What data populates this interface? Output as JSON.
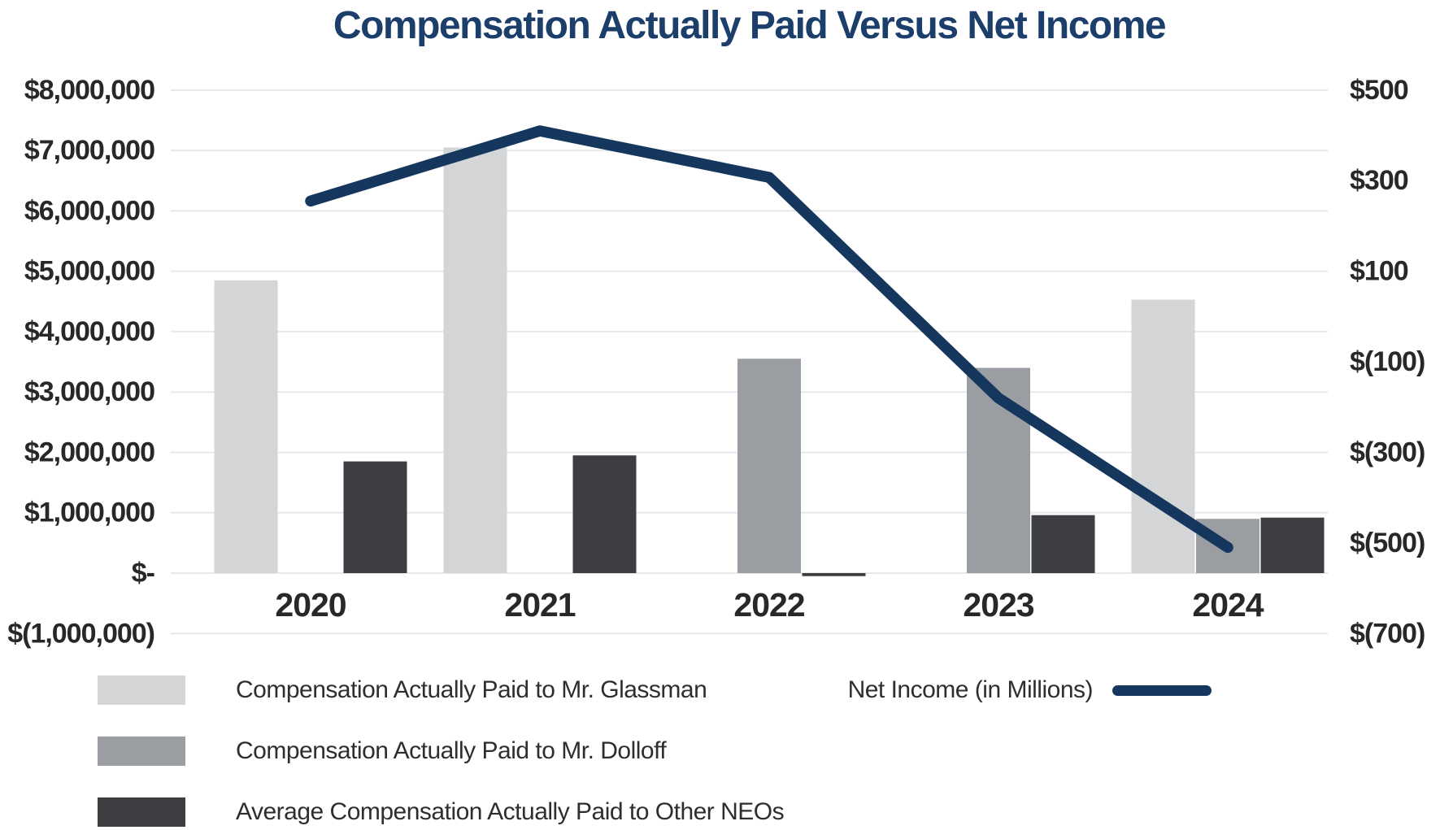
{
  "chart_data": {
    "type": "combo-bar-line",
    "title": "Compensation Actually Paid Versus Net Income",
    "categories": [
      "2020",
      "2021",
      "2022",
      "2023",
      "2024"
    ],
    "bar_series": [
      {
        "key": "glassman",
        "name": "Compensation Actually Paid to Mr. Glassman",
        "color": "#d3d5d6",
        "values": [
          4850000,
          7050000,
          null,
          null,
          4530000
        ]
      },
      {
        "key": "dolloff",
        "name": "Compensation Actually Paid to Mr. Dolloff",
        "color": "#9a9ea3",
        "values": [
          null,
          null,
          3550000,
          3400000,
          900000
        ]
      },
      {
        "key": "other-neos",
        "name": "Average Compensation Actually Paid to Other NEOs",
        "color": "#3d3e41",
        "values": [
          1850000,
          1950000,
          -50000,
          960000,
          920000
        ]
      }
    ],
    "line_series": {
      "key": "net-income",
      "name": "Net Income (in Millions)",
      "color": "#16375d",
      "axis": "right",
      "values": [
        255,
        410,
        307,
        -180,
        -510
      ]
    },
    "left_axis": {
      "tick_labels": [
        "$8,000,000",
        "$7,000,000",
        "$6,000,000",
        "$5,000,000",
        "$4,000,000",
        "$3,000,000",
        "$2,000,000",
        "$1,000,000",
        "$-",
        "$(1,000,000)"
      ],
      "tick_values_millions": [
        8,
        7,
        6,
        5,
        4,
        3,
        2,
        1,
        0,
        -1
      ],
      "range_millions": [
        -1,
        8
      ]
    },
    "right_axis": {
      "tick_labels": [
        "$500",
        "$300",
        "$100",
        "$(100)",
        "$(300)",
        "$(500)",
        "$(700)"
      ],
      "tick_values": [
        500,
        300,
        100,
        -100,
        -300,
        -500,
        -700
      ],
      "range": [
        -700,
        500
      ]
    },
    "grid": true,
    "legend_position": "bottom"
  },
  "colors": {
    "title": "#1c3e6b",
    "axis_text": "#28282a",
    "gridline": "#e7e8e9",
    "background": "#ffffff"
  }
}
